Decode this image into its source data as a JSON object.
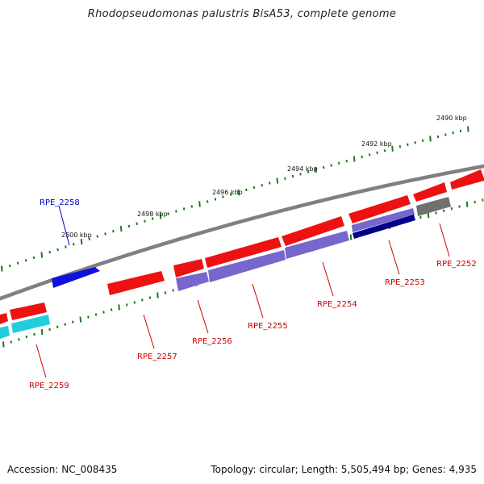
{
  "title": "Rhodopseudomonas palustris BisA53, complete genome",
  "footer": {
    "accession": "Accession: NC_008435",
    "summary": "Topology: circular; Length: 5,505,494 bp; Genes: 4,935"
  },
  "colors": {
    "backbone": "#808080",
    "tick": "#1a7a1a",
    "gene_red": "#ee1111",
    "gene_purple": "#7766cc",
    "gene_blue": "#1111dd",
    "gene_navy": "#000088",
    "gene_gray": "#707070",
    "gene_cyan": "#22ccdd",
    "label_red": "#cc0000",
    "label_blue": "#0000cc"
  },
  "kbp_labels": [
    "2490 kbp",
    "2492 kbp",
    "2494 kbp",
    "2496 kbp",
    "2498 kbp",
    "2500 kbp"
  ],
  "genes": [
    {
      "name": "RPE_2252",
      "color": "red"
    },
    {
      "name": "RPE_2253",
      "color": "red"
    },
    {
      "name": "RPE_2254",
      "color": "red"
    },
    {
      "name": "RPE_2255",
      "color": "red"
    },
    {
      "name": "RPE_2256",
      "color": "red"
    },
    {
      "name": "RPE_2257",
      "color": "red"
    },
    {
      "name": "RPE_2258",
      "color": "blue"
    },
    {
      "name": "RPE_2259",
      "color": "red"
    }
  ]
}
